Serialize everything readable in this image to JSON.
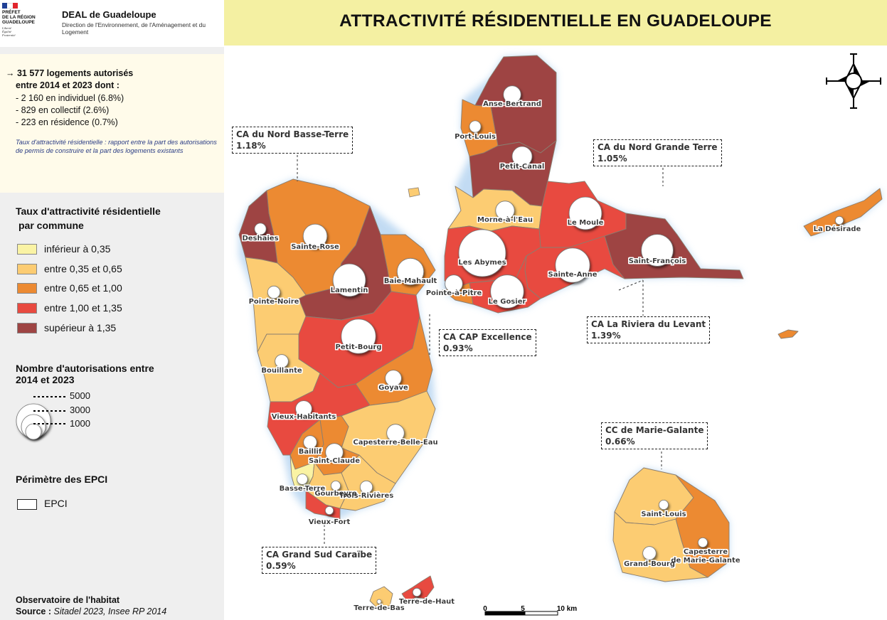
{
  "header": {
    "logo_lines": [
      "PRÉFET",
      "DE LA RÉGION",
      "GUADELOUPE"
    ],
    "logo_motto": [
      "Liberté",
      "Égalité",
      "Fraternité"
    ],
    "org_title": "DEAL de Guadeloupe",
    "org_subtitle": "Direction de l'Environnement, de l'Aménagement et du Logement",
    "map_title": "ATTRACTIVITÉ RÉSIDENTIELLE EN GUADELOUPE"
  },
  "summary": {
    "line1": "→ 31 577 logements autorisés",
    "line2": "entre 2014 et 2023 dont :",
    "items": [
      "- 2 160 en individuel (6.8%)",
      "- 829 en collectif (2.6%)",
      "- 223 en résidence (0.7%)"
    ],
    "definition": "Taux d'attractivité résidentielle : rapport entre la part des autorisations de permis de construire et la part des logements existants"
  },
  "legend_rate": {
    "title_line1": "Taux d'attractivité résidentielle",
    "title_line2": "par commune",
    "classes": [
      {
        "label": "inférieur à 0,35",
        "color": "#faf3a4"
      },
      {
        "label": "entre 0,35 et 0,65",
        "color": "#fccc72"
      },
      {
        "label": "entre 0,65 et 1,00",
        "color": "#ec8a32"
      },
      {
        "label": "entre 1,00 et 1,35",
        "color": "#e84a40"
      },
      {
        "label": "supérieur à 1,35",
        "color": "#9e4443"
      }
    ]
  },
  "legend_size": {
    "title_line1": "Nombre d'autorisations entre",
    "title_line2": "2014 et 2023",
    "values": [
      "5000",
      "3000",
      "1000"
    ]
  },
  "legend_epci": {
    "title": "Périmètre des EPCI",
    "label": "EPCI"
  },
  "footer": {
    "line1": "Observatoire de l'habitat",
    "source_label": "Source :",
    "source_value": "Sitadel 2023, Insee RP 2014"
  },
  "scale": {
    "ticks": [
      "0",
      "5",
      "10 km"
    ]
  },
  "epci": [
    {
      "name": "CA du Nord Basse-Terre",
      "rate": "1.18%"
    },
    {
      "name": "CA du Nord Grande Terre",
      "rate": "1.05%"
    },
    {
      "name": "CA CAP Excellence",
      "rate": "0.93%"
    },
    {
      "name": "CA La Riviera du Levant",
      "rate": "1.39%"
    },
    {
      "name": "CC de Marie-Galante",
      "rate": "0.66%"
    },
    {
      "name": "CA Grand Sud Caraïbe",
      "rate": "0.59%"
    }
  ],
  "communes": [
    {
      "name": "Anse-Bertrand",
      "class": 4,
      "permits": 700
    },
    {
      "name": "Port-Louis",
      "class": 2,
      "permits": 300
    },
    {
      "name": "Petit-Canal",
      "class": 4,
      "permits": 900
    },
    {
      "name": "Morne-à-l'Eau",
      "class": 1,
      "permits": 800
    },
    {
      "name": "Le Moule",
      "class": 3,
      "permits": 2400
    },
    {
      "name": "Les Abymes",
      "class": 3,
      "permits": 5000
    },
    {
      "name": "Saint-François",
      "class": 4,
      "permits": 2300
    },
    {
      "name": "Sainte-Anne",
      "class": 3,
      "permits": 2700
    },
    {
      "name": "Le Gosier",
      "class": 3,
      "permits": 2500
    },
    {
      "name": "Pointe-à-Pitre",
      "class": 2,
      "permits": 700
    },
    {
      "name": "Baie-Mahault",
      "class": 2,
      "permits": 1600
    },
    {
      "name": "Lamentin",
      "class": 4,
      "permits": 2400
    },
    {
      "name": "Sainte-Rose",
      "class": 2,
      "permits": 1300
    },
    {
      "name": "Deshaies",
      "class": 4,
      "permits": 300
    },
    {
      "name": "Pointe-Noire",
      "class": 1,
      "permits": 350
    },
    {
      "name": "Petit-Bourg",
      "class": 3,
      "permits": 2700
    },
    {
      "name": "Goyave",
      "class": 2,
      "permits": 600
    },
    {
      "name": "Bouillante",
      "class": 1,
      "permits": 400
    },
    {
      "name": "Vieux-Habitants",
      "class": 3,
      "permits": 600
    },
    {
      "name": "Capesterre-Belle-Eau",
      "class": 1,
      "permits": 700
    },
    {
      "name": "Baillif",
      "class": 2,
      "permits": 400
    },
    {
      "name": "Saint-Claude",
      "class": 2,
      "permits": 700
    },
    {
      "name": "Basse-Terre",
      "class": 0,
      "permits": 250
    },
    {
      "name": "Gourbeyre",
      "class": 1,
      "permits": 200
    },
    {
      "name": "Trois-Rivières",
      "class": 1,
      "permits": 350
    },
    {
      "name": "Vieux-Fort",
      "class": 3,
      "permits": 150
    },
    {
      "name": "La Désirade",
      "class": 2,
      "permits": 150
    },
    {
      "name": "Saint-Louis",
      "class": 1,
      "permits": 200
    },
    {
      "name": "Grand-Bourg",
      "class": 1,
      "permits": 400
    },
    {
      "name": "Capesterre de Marie-Galante",
      "label_lines": [
        "Capesterre",
        "de Marie-Galante"
      ],
      "class": 2,
      "permits": 200
    },
    {
      "name": "Terre-de-Haut",
      "class": 3,
      "permits": 150
    },
    {
      "name": "Terre-de-Bas",
      "class": 1,
      "permits": 40
    }
  ]
}
